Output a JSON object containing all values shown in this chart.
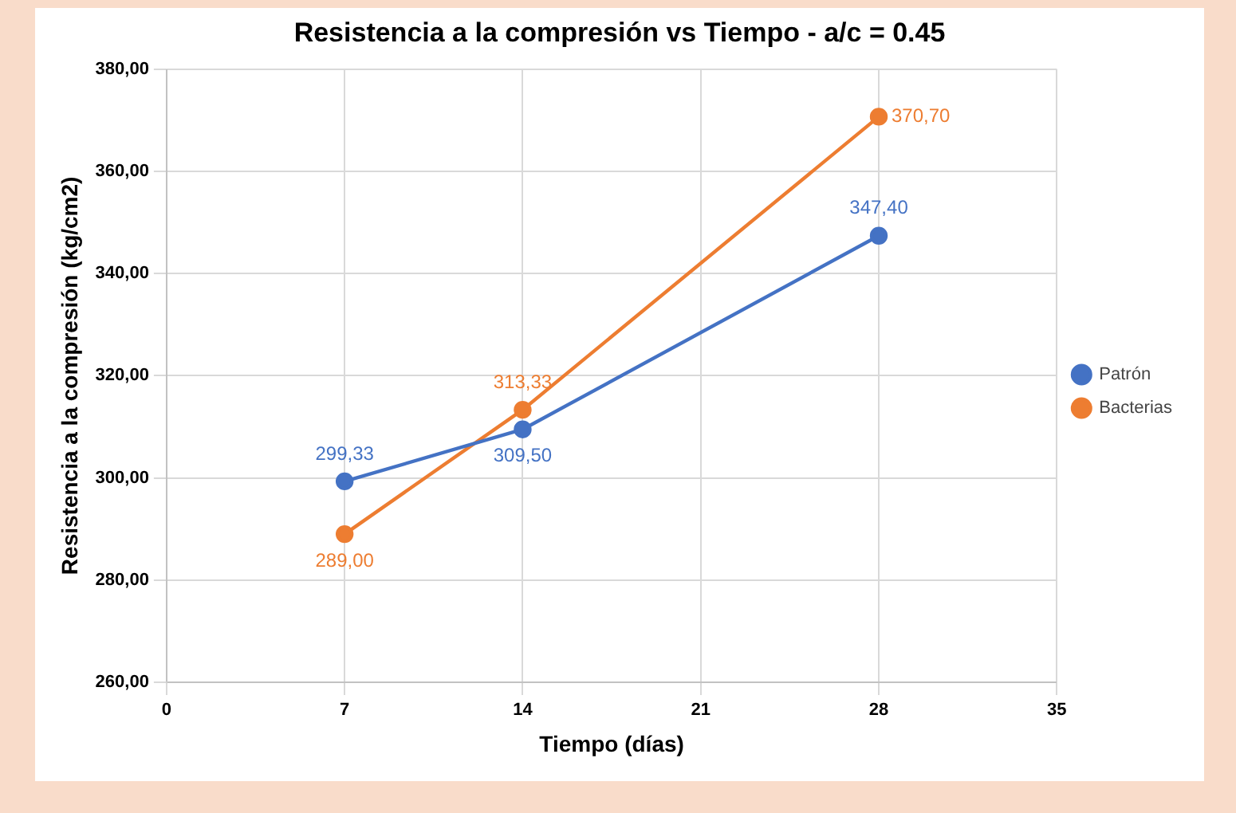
{
  "chart_data": {
    "type": "line",
    "title": "Resistencia a la compresión vs Tiempo - a/c = 0.45",
    "xlabel": "Tiempo (días)",
    "ylabel": "Resistencia a la compresión (kg/cm2)",
    "x": [
      7,
      14,
      28
    ],
    "series": [
      {
        "name": "Patrón",
        "color": "#4472c4",
        "values": [
          299.33,
          309.5,
          347.4
        ],
        "value_labels": [
          "299,33",
          "309,50",
          "347,40"
        ]
      },
      {
        "name": "Bacterias",
        "color": "#ed7d31",
        "values": [
          289.0,
          313.33,
          370.7
        ],
        "value_labels": [
          "289,00",
          "313,33",
          "370,70"
        ]
      }
    ],
    "xlim": [
      0,
      35
    ],
    "xticks": [
      0,
      7,
      14,
      21,
      28,
      35
    ],
    "ylim": [
      260,
      380
    ],
    "yticks": [
      {
        "value": 260,
        "label": "260,00"
      },
      {
        "value": 280,
        "label": "280,00"
      },
      {
        "value": 300,
        "label": "300,00"
      },
      {
        "value": 320,
        "label": "320,00"
      },
      {
        "value": 340,
        "label": "340,00"
      },
      {
        "value": 360,
        "label": "360,00"
      },
      {
        "value": 380,
        "label": "380,00"
      }
    ],
    "grid": true,
    "legend": "right",
    "marker": "circle",
    "line_style": "solid"
  }
}
